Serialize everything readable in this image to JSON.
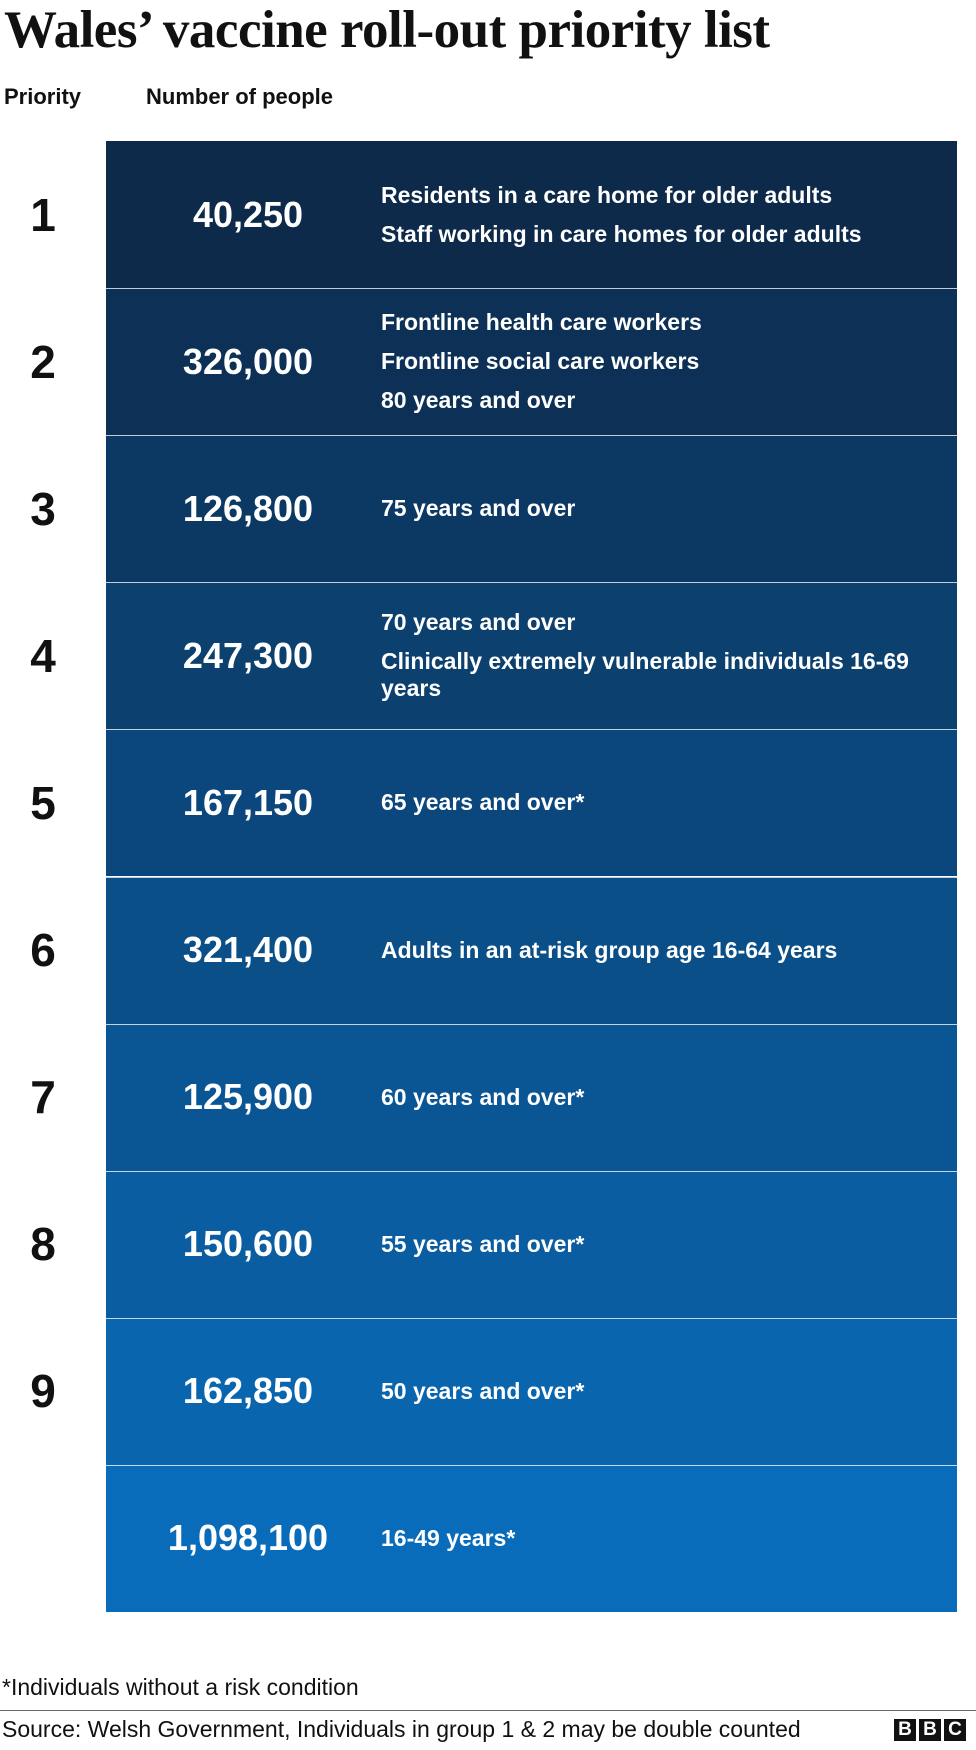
{
  "header": {
    "title": "Wales’ vaccine roll-out priority list",
    "columns": [
      "Priority",
      "Number of people"
    ]
  },
  "table": {
    "rows": [
      {
        "priority": "1",
        "number": "40,250",
        "groups": [
          "Residents in a care home for older adults",
          "Staff working in care homes for older adults"
        ]
      },
      {
        "priority": "2",
        "number": "326,000",
        "groups": [
          "Frontline health care workers",
          "Frontline social care workers",
          "80 years and over"
        ]
      },
      {
        "priority": "3",
        "number": "126,800",
        "groups": [
          "75 years and over"
        ]
      },
      {
        "priority": "4",
        "number": "247,300",
        "groups": [
          "70 years and over",
          "Clinically extremely vulnerable individuals 16-69 years"
        ]
      },
      {
        "priority": "5",
        "number": "167,150",
        "groups": [
          "65 years and over*"
        ]
      },
      {
        "priority": "6",
        "number": "321,400",
        "groups": [
          "Adults in an at-risk group age 16-64 years"
        ]
      },
      {
        "priority": "7",
        "number": "125,900",
        "groups": [
          "60 years and over*"
        ]
      },
      {
        "priority": "8",
        "number": "150,600",
        "groups": [
          "55 years and over*"
        ]
      },
      {
        "priority": "9",
        "number": "162,850",
        "groups": [
          "50 years and over*"
        ]
      },
      {
        "number": "1,098,100",
        "groups": [
          "16-49 years*"
        ]
      }
    ]
  },
  "footer": {
    "note": "*Individuals without a risk condition",
    "source": "Source: Welsh Government, Individuals in group 1 & 2 may be double counted",
    "logo": [
      "B",
      "B",
      "C"
    ]
  }
}
